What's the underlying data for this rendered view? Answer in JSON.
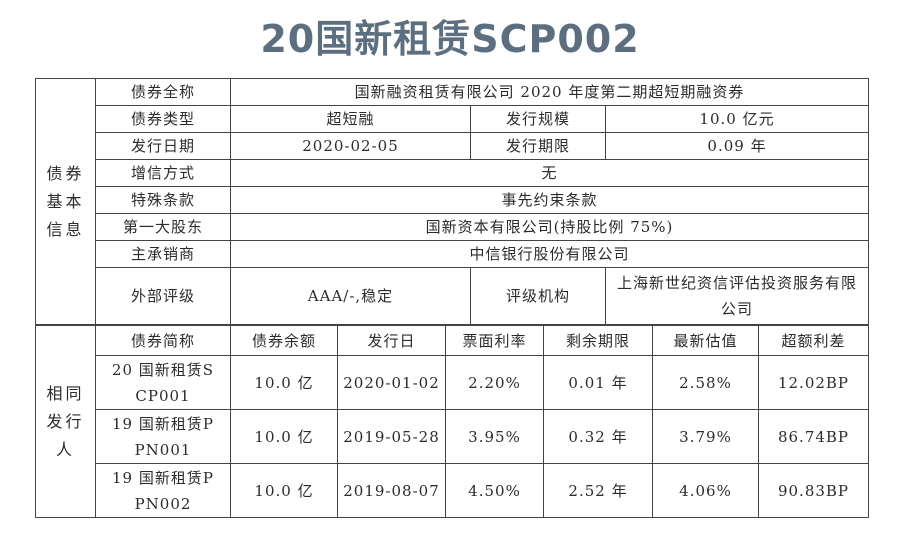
{
  "title": "20国新租赁SCP002",
  "basic_info": {
    "label": "债券基本信息",
    "rows": [
      [
        "债券全称",
        "国新融资租赁有限公司 2020 年度第二期超短期融资券"
      ],
      [
        "债券类型",
        "超短融",
        "发行规模",
        "10.0 亿元"
      ],
      [
        "发行日期",
        "2020-02-05",
        "发行期限",
        "0.09 年"
      ],
      [
        "增信方式",
        "无"
      ],
      [
        "特殊条款",
        "事先约束条款"
      ],
      [
        "第一大股东",
        "国新资本有限公司(持股比例 75%)"
      ],
      [
        "主承销商",
        "中信银行股份有限公司"
      ],
      [
        "外部评级",
        "AAA/-,稳定",
        "评级机构",
        "上海新世纪资信评估投资服务有限公司"
      ]
    ]
  },
  "same_issuer": {
    "label": "相同发行人",
    "header": [
      "债券简称",
      "债券余额",
      "发行日",
      "票面利率",
      "剩余期限",
      "最新估值",
      "超额利差"
    ],
    "rows": [
      [
        "20 国新租赁SCP001",
        "10.0 亿",
        "2020-01-02",
        "2.20%",
        "0.01 年",
        "2.58%",
        "12.02BP"
      ],
      [
        "19 国新租赁PPN001",
        "10.0 亿",
        "2019-05-28",
        "3.95%",
        "0.32 年",
        "3.79%",
        "86.74BP"
      ],
      [
        "19 国新租赁PPN002",
        "10.0 亿",
        "2019-08-07",
        "4.50%",
        "2.52 年",
        "4.06%",
        "90.83BP"
      ]
    ]
  }
}
